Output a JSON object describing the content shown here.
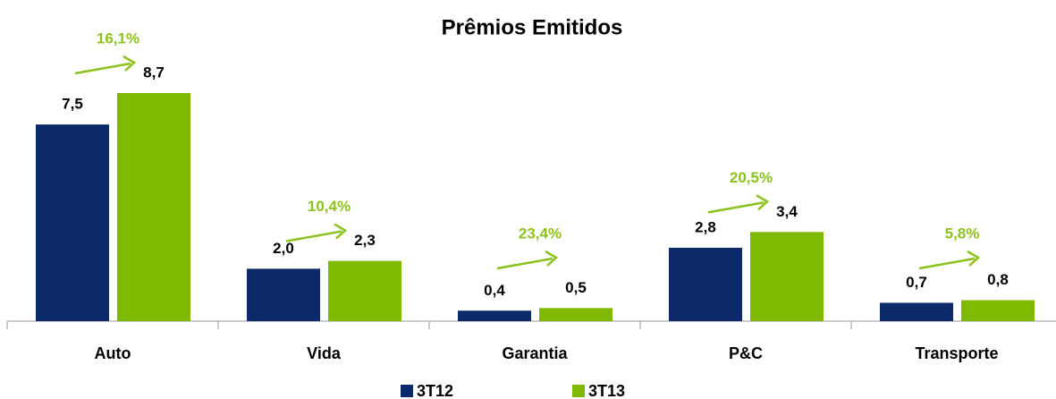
{
  "chart_data": {
    "type": "bar",
    "title": "Prêmios Emitidos",
    "categories": [
      "Auto",
      "Vida",
      "Garantia",
      "P&C",
      "Transporte"
    ],
    "series": [
      {
        "name": "3T12",
        "color": "#0c2a6a",
        "values": [
          7.5,
          2.0,
          0.4,
          2.8,
          0.7
        ],
        "value_labels": [
          "7,5",
          "2,0",
          "0,4",
          "2,8",
          "0,7"
        ]
      },
      {
        "name": "3T13",
        "color": "#7fba00",
        "values": [
          8.7,
          2.3,
          0.5,
          3.4,
          0.8
        ],
        "value_labels": [
          "8,7",
          "2,3",
          "0,5",
          "3,4",
          "0,8"
        ]
      }
    ],
    "annotations": [
      "16,1%",
      "10,4%",
      "23,4%",
      "20,5%",
      "5,8%"
    ],
    "annotation_color": "#8cc21e",
    "legend": "bottom"
  }
}
